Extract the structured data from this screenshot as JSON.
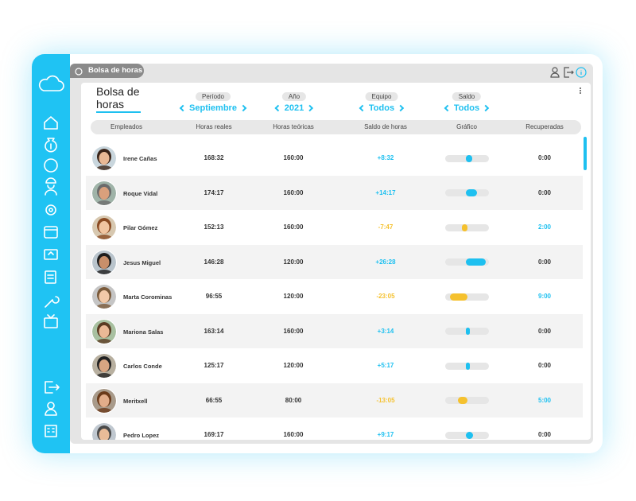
{
  "header": {
    "tab": "Bolsa de horas"
  },
  "title": "Bolsa de horas",
  "filters": [
    {
      "label": "Período",
      "value": "Septiembre"
    },
    {
      "label": "Año",
      "value": "2021"
    },
    {
      "label": "Equipo",
      "value": "Todos"
    },
    {
      "label": "Saldo",
      "value": "Todos"
    }
  ],
  "table": {
    "columns": [
      "Empleados",
      "Horas reales",
      "Horas teóricas",
      "Saldo de horas",
      "Gráfico",
      "Recuperadas"
    ],
    "rows": [
      [
        "Irene Cañas",
        "168:32",
        "160:00",
        "+8:32",
        "0:00"
      ],
      [
        "Roque Vidal",
        "174:17",
        "160:00",
        "+14:17",
        "0:00"
      ],
      [
        "Pilar Gómez",
        "152:13",
        "160:00",
        "-7:47",
        "2:00"
      ],
      [
        "Jesus Miguel",
        "146:28",
        "120:00",
        "+26:28",
        "0:00"
      ],
      [
        "Marta Corominas",
        "96:55",
        "120:00",
        "-23:05",
        "9:00"
      ],
      [
        "Mariona Salas",
        "163:14",
        "160:00",
        "+3:14",
        "0:00"
      ],
      [
        "Carlos Conde",
        "125:17",
        "120:00",
        "+5:17",
        "0:00"
      ],
      [
        "Meritxell",
        "66:55",
        "80:00",
        "-13:05",
        "5:00"
      ],
      [
        "Pedro Lopez",
        "169:17",
        "160:00",
        "+9:17",
        "0:00"
      ]
    ]
  }
}
